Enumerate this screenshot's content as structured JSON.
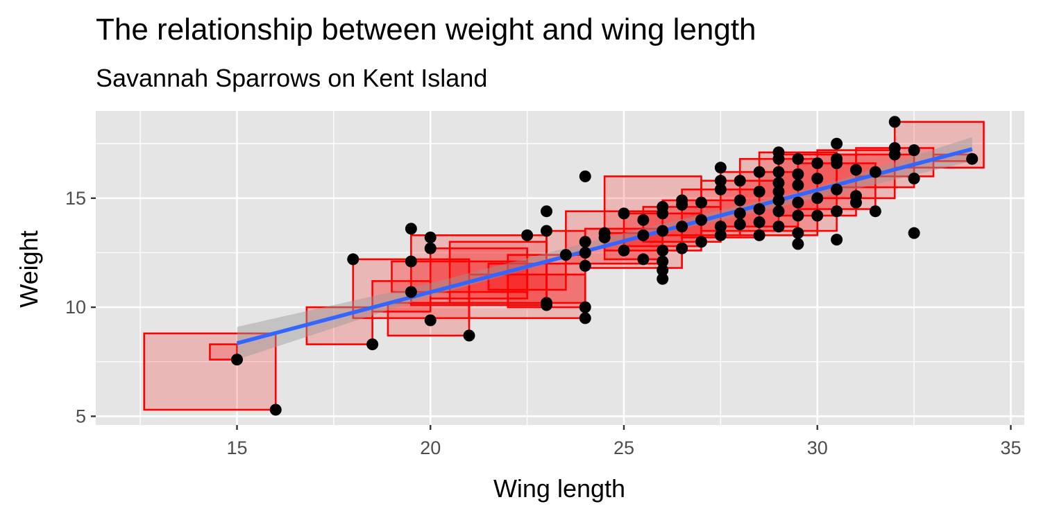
{
  "chart_data": {
    "type": "scatter",
    "title": "The relationship between weight and wing length",
    "subtitle": "Savannah Sparrows on Kent Island",
    "xlabel": "Wing length",
    "ylabel": "Weight",
    "xlim": [
      11.35,
      35.35
    ],
    "ylim": [
      4.6,
      19.0
    ],
    "x_ticks": [
      15,
      20,
      25,
      30,
      35
    ],
    "y_ticks": [
      5,
      10,
      15
    ],
    "grid": true,
    "colors": {
      "panel": "#e5e5e5",
      "grid": "#ffffff",
      "points": "#000000",
      "rect_stroke": "#ff0000",
      "rect_fill": "#ff0000",
      "fit_line": "#3366ff",
      "ribbon": "#999999"
    },
    "points": [
      [
        15,
        7.6
      ],
      [
        16,
        5.3
      ],
      [
        18,
        12.2
      ],
      [
        18.5,
        8.3
      ],
      [
        19.5,
        13.6
      ],
      [
        19.5,
        12.1
      ],
      [
        19.5,
        10.7
      ],
      [
        20,
        13.2
      ],
      [
        20,
        12.7
      ],
      [
        20,
        9.4
      ],
      [
        21,
        8.7
      ],
      [
        22.5,
        13.3
      ],
      [
        23,
        14.4
      ],
      [
        23,
        13.5
      ],
      [
        23,
        10.2
      ],
      [
        23,
        10.1
      ],
      [
        23.5,
        12.4
      ],
      [
        24,
        16.0
      ],
      [
        24,
        13.0
      ],
      [
        24,
        12.5
      ],
      [
        24,
        11.9
      ],
      [
        24,
        10.0
      ],
      [
        24,
        9.5
      ],
      [
        24.5,
        13.4
      ],
      [
        24.5,
        13.2
      ],
      [
        25,
        14.3
      ],
      [
        25,
        12.6
      ],
      [
        25.5,
        14.0
      ],
      [
        25.5,
        13.3
      ],
      [
        25.5,
        12.2
      ],
      [
        26,
        14.6
      ],
      [
        26,
        14.3
      ],
      [
        26,
        13.5
      ],
      [
        26,
        12.6
      ],
      [
        26,
        12.1
      ],
      [
        26,
        11.7
      ],
      [
        26,
        11.3
      ],
      [
        26.5,
        14.9
      ],
      [
        26.5,
        14.7
      ],
      [
        26.5,
        13.7
      ],
      [
        26.5,
        12.7
      ],
      [
        27,
        14.8
      ],
      [
        27,
        14.0
      ],
      [
        27,
        13.0
      ],
      [
        27.5,
        16.4
      ],
      [
        27.5,
        15.8
      ],
      [
        27.5,
        15.4
      ],
      [
        27.5,
        13.7
      ],
      [
        27.5,
        13.3
      ],
      [
        28,
        15.8
      ],
      [
        28,
        14.9
      ],
      [
        28,
        14.3
      ],
      [
        28,
        13.8
      ],
      [
        28.5,
        16.2
      ],
      [
        28.5,
        15.3
      ],
      [
        28.5,
        14.5
      ],
      [
        28.5,
        13.9
      ],
      [
        28.5,
        13.3
      ],
      [
        29,
        17.1
      ],
      [
        29,
        16.8
      ],
      [
        29,
        16.2
      ],
      [
        29,
        15.7
      ],
      [
        29,
        15.3
      ],
      [
        29,
        14.9
      ],
      [
        29,
        14.4
      ],
      [
        29,
        13.7
      ],
      [
        29.5,
        16.8
      ],
      [
        29.5,
        16.1
      ],
      [
        29.5,
        15.6
      ],
      [
        29.5,
        14.8
      ],
      [
        29.5,
        14.2
      ],
      [
        29.5,
        13.4
      ],
      [
        29.5,
        12.9
      ],
      [
        30,
        16.6
      ],
      [
        30,
        15.9
      ],
      [
        30,
        15.0
      ],
      [
        30,
        14.2
      ],
      [
        30.5,
        17.5
      ],
      [
        30.5,
        16.8
      ],
      [
        30.5,
        16.6
      ],
      [
        30.5,
        15.4
      ],
      [
        30.5,
        14.4
      ],
      [
        30.5,
        13.1
      ],
      [
        31,
        16.3
      ],
      [
        31,
        15.1
      ],
      [
        31,
        14.8
      ],
      [
        31.5,
        16.2
      ],
      [
        31.5,
        14.4
      ],
      [
        32,
        18.5
      ],
      [
        32,
        17.3
      ],
      [
        32,
        17.0
      ],
      [
        32.5,
        17.2
      ],
      [
        32.5,
        15.9
      ],
      [
        32.5,
        13.4
      ],
      [
        34,
        16.8
      ]
    ],
    "rects": [
      [
        12.6,
        16.0,
        5.3,
        8.8
      ],
      [
        14.3,
        15.0,
        7.6,
        8.3
      ],
      [
        16.8,
        18.5,
        8.3,
        10.0
      ],
      [
        18.0,
        21.0,
        9.5,
        12.2
      ],
      [
        18.5,
        20.0,
        9.8,
        11.2
      ],
      [
        18.9,
        21.0,
        8.7,
        10.2
      ],
      [
        19.0,
        22.5,
        10.7,
        12.1
      ],
      [
        19.5,
        23.0,
        10.1,
        13.3
      ],
      [
        20.0,
        22.5,
        10.4,
        12.7
      ],
      [
        20.5,
        23.0,
        10.2,
        13.0
      ],
      [
        21.0,
        24.0,
        9.5,
        11.5
      ],
      [
        21.5,
        23.5,
        10.8,
        12.0
      ],
      [
        22.0,
        24.0,
        10.0,
        12.4
      ],
      [
        23.0,
        24.0,
        10.2,
        13.5
      ],
      [
        23.5,
        26.0,
        12.0,
        14.4
      ],
      [
        24.0,
        26.5,
        11.8,
        13.6
      ],
      [
        24.5,
        26.0,
        12.2,
        13.4
      ],
      [
        24.5,
        27.0,
        12.6,
        16.0
      ],
      [
        25.0,
        27.0,
        12.8,
        14.3
      ],
      [
        25.5,
        27.5,
        13.0,
        14.6
      ],
      [
        26.0,
        28.0,
        13.3,
        14.9
      ],
      [
        26.5,
        28.5,
        13.2,
        15.4
      ],
      [
        27.0,
        29.0,
        13.5,
        15.8
      ],
      [
        27.5,
        29.5,
        13.7,
        16.2
      ],
      [
        28.0,
        30.0,
        13.3,
        16.8
      ],
      [
        28.5,
        30.5,
        13.5,
        17.1
      ],
      [
        29.0,
        31.0,
        14.2,
        17.0
      ],
      [
        29.5,
        31.5,
        14.5,
        16.6
      ],
      [
        30.0,
        32.0,
        15.0,
        17.2
      ],
      [
        30.5,
        32.5,
        15.5,
        17.0
      ],
      [
        31.0,
        33.0,
        16.0,
        17.3
      ],
      [
        32.0,
        34.3,
        16.4,
        18.5
      ],
      [
        33.0,
        34.0,
        16.7,
        17.0
      ]
    ],
    "fit": {
      "x": [
        15,
        34
      ],
      "y": [
        8.35,
        17.25
      ]
    },
    "ribbon": {
      "x": [
        15,
        20,
        25,
        30,
        34
      ],
      "lower": [
        7.6,
        10.5,
        13.0,
        15.0,
        16.7
      ],
      "upper": [
        9.1,
        11.1,
        13.4,
        15.5,
        17.8
      ]
    }
  }
}
